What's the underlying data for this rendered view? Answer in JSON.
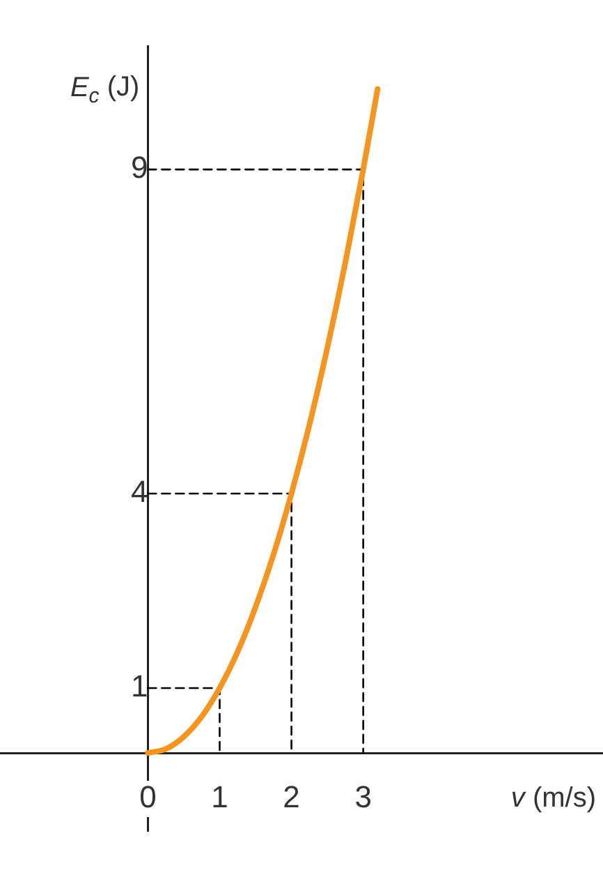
{
  "chart_data": {
    "type": "line",
    "xlabel": "v (m/s)",
    "ylabel": "E$_{c}$ (J)",
    "xlim": [
      -2.06,
      6.34
    ],
    "ylim": [
      -1.2,
      10.9
    ],
    "xticks": [
      0,
      1,
      2,
      3
    ],
    "yticks": [
      1,
      4,
      9
    ],
    "grid": false,
    "legend": false,
    "marker": "none",
    "series": [
      {
        "color": "#f7941d",
        "x": [
          0,
          0.25,
          0.5,
          0.75,
          1,
          1.25,
          1.5,
          1.75,
          2,
          2.25,
          2.5,
          2.75,
          3,
          3.2
        ],
        "values": [
          0,
          0.06,
          0.25,
          0.56,
          1,
          1.56,
          2.25,
          3.06,
          4,
          5.06,
          6.25,
          7.56,
          9,
          10.24
        ]
      },
      {
        "type": "line",
        "color": "#000000",
        "line_style": "dashed",
        "x": [
          0,
          1,
          1
        ],
        "values": [
          1,
          1,
          0
        ]
      },
      {
        "type": "line",
        "color": "#000000",
        "line_style": "dashed",
        "x": [
          0,
          2,
          2
        ],
        "values": [
          4,
          4,
          0
        ]
      },
      {
        "type": "line",
        "color": "#000000",
        "line_style": "dashed",
        "x": [
          0,
          3,
          3
        ],
        "values": [
          9,
          9,
          0
        ]
      }
    ]
  }
}
